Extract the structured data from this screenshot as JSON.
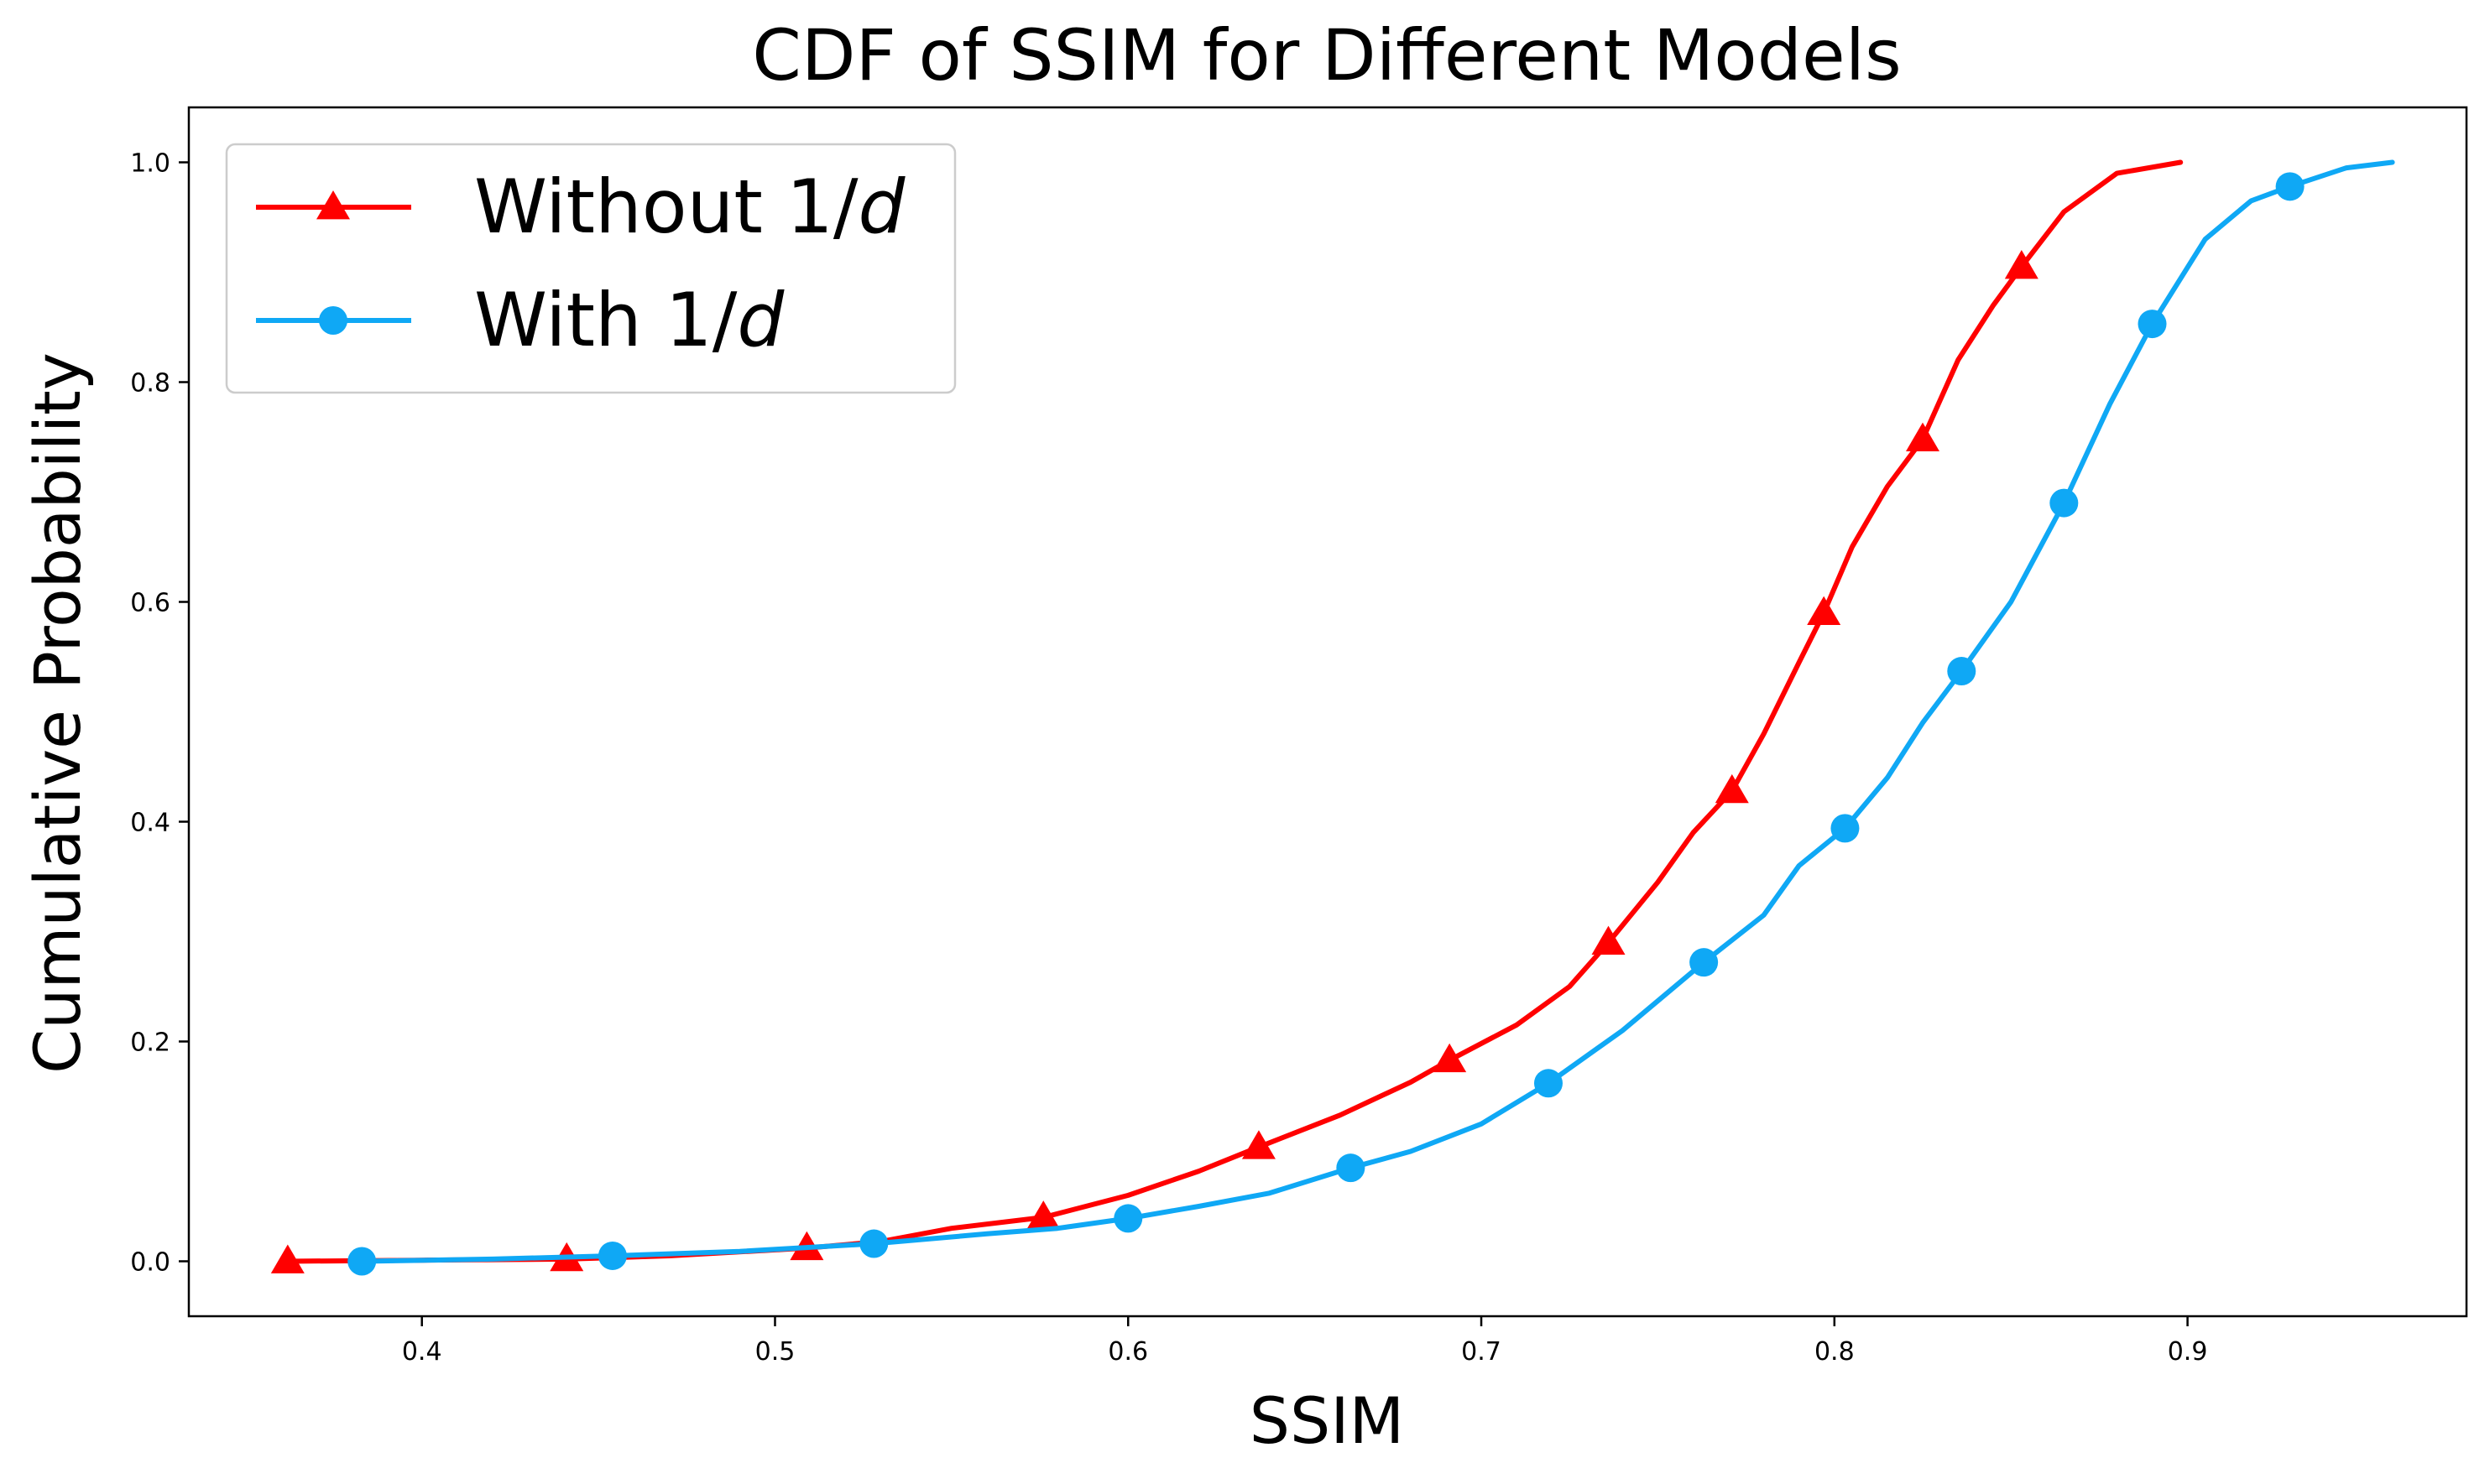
{
  "chart_data": {
    "type": "line",
    "title": "CDF of SSIM for Different Models",
    "xlabel": "SSIM",
    "ylabel": "Cumulative Probability",
    "xlim": [
      0.334,
      0.979
    ],
    "ylim": [
      -0.05,
      1.05
    ],
    "xticks": [
      0.4,
      0.5,
      0.6,
      0.7,
      0.8,
      0.9
    ],
    "xtick_labels": [
      "0.4",
      "0.5",
      "0.6",
      "0.7",
      "0.8",
      "0.9"
    ],
    "yticks": [
      0.0,
      0.2,
      0.4,
      0.6,
      0.8,
      1.0
    ],
    "ytick_labels": [
      "0.0",
      "0.2",
      "0.4",
      "0.6",
      "0.8",
      "1.0"
    ],
    "grid": false,
    "legend_position": "upper-left",
    "series": [
      {
        "name": "Without 1/d",
        "legend_prefix": "Without 1/",
        "legend_italic": "d",
        "color": "#ff0000",
        "marker": "triangle",
        "points": [
          [
            0.362,
            0.0
          ],
          [
            0.4,
            0.001
          ],
          [
            0.441,
            0.002
          ],
          [
            0.47,
            0.005
          ],
          [
            0.509,
            0.012
          ],
          [
            0.53,
            0.018
          ],
          [
            0.55,
            0.03
          ],
          [
            0.576,
            0.04
          ],
          [
            0.6,
            0.06
          ],
          [
            0.62,
            0.082
          ],
          [
            0.637,
            0.104
          ],
          [
            0.66,
            0.133
          ],
          [
            0.68,
            0.163
          ],
          [
            0.691,
            0.183
          ],
          [
            0.71,
            0.215
          ],
          [
            0.725,
            0.25
          ],
          [
            0.736,
            0.29
          ],
          [
            0.75,
            0.345
          ],
          [
            0.76,
            0.39
          ],
          [
            0.771,
            0.428
          ],
          [
            0.78,
            0.48
          ],
          [
            0.79,
            0.545
          ],
          [
            0.797,
            0.59
          ],
          [
            0.805,
            0.65
          ],
          [
            0.815,
            0.705
          ],
          [
            0.825,
            0.748
          ],
          [
            0.835,
            0.82
          ],
          [
            0.845,
            0.87
          ],
          [
            0.853,
            0.905
          ],
          [
            0.865,
            0.955
          ],
          [
            0.88,
            0.99
          ],
          [
            0.898,
            1.0
          ]
        ],
        "marker_points": [
          [
            0.362,
            0.0
          ],
          [
            0.441,
            0.002
          ],
          [
            0.509,
            0.012
          ],
          [
            0.576,
            0.04
          ],
          [
            0.637,
            0.104
          ],
          [
            0.691,
            0.183
          ],
          [
            0.736,
            0.29
          ],
          [
            0.771,
            0.428
          ],
          [
            0.797,
            0.59
          ],
          [
            0.825,
            0.748
          ],
          [
            0.853,
            0.905
          ]
        ]
      },
      {
        "name": "With 1/d",
        "legend_prefix": "With 1/",
        "legend_italic": "d",
        "color": "#0fa8f5",
        "marker": "circle",
        "points": [
          [
            0.383,
            0.0
          ],
          [
            0.42,
            0.002
          ],
          [
            0.454,
            0.005
          ],
          [
            0.49,
            0.009
          ],
          [
            0.528,
            0.016
          ],
          [
            0.56,
            0.025
          ],
          [
            0.58,
            0.03
          ],
          [
            0.6,
            0.039
          ],
          [
            0.62,
            0.05
          ],
          [
            0.64,
            0.062
          ],
          [
            0.663,
            0.085
          ],
          [
            0.68,
            0.1
          ],
          [
            0.7,
            0.125
          ],
          [
            0.719,
            0.162
          ],
          [
            0.74,
            0.21
          ],
          [
            0.763,
            0.272
          ],
          [
            0.78,
            0.315
          ],
          [
            0.79,
            0.36
          ],
          [
            0.803,
            0.394
          ],
          [
            0.815,
            0.44
          ],
          [
            0.825,
            0.49
          ],
          [
            0.836,
            0.537
          ],
          [
            0.85,
            0.6
          ],
          [
            0.865,
            0.69
          ],
          [
            0.878,
            0.78
          ],
          [
            0.89,
            0.853
          ],
          [
            0.905,
            0.93
          ],
          [
            0.918,
            0.965
          ],
          [
            0.929,
            0.978
          ],
          [
            0.945,
            0.995
          ],
          [
            0.958,
            1.0
          ]
        ],
        "marker_points": [
          [
            0.383,
            0.0
          ],
          [
            0.454,
            0.005
          ],
          [
            0.528,
            0.016
          ],
          [
            0.6,
            0.039
          ],
          [
            0.663,
            0.085
          ],
          [
            0.719,
            0.162
          ],
          [
            0.763,
            0.272
          ],
          [
            0.803,
            0.394
          ],
          [
            0.836,
            0.537
          ],
          [
            0.865,
            0.69
          ],
          [
            0.89,
            0.853
          ],
          [
            0.929,
            0.978
          ]
        ]
      }
    ]
  }
}
